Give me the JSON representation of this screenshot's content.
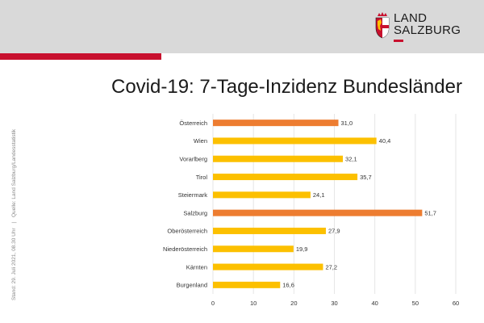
{
  "logo": {
    "line1": "LAND",
    "line2": "SALZBURG"
  },
  "colors": {
    "header_bg": "#d9d9d9",
    "brand_red": "#c8102e",
    "bar_default": "#fcc000",
    "bar_highlight": "#ed7d31",
    "gridline": "#e6e6e6"
  },
  "side_note": {
    "stand": "Stand: 29. Juli 2021, 08.30 Uhr",
    "separator": "|",
    "quelle": "Quelle: Land Salzburg/Landesstatistik"
  },
  "chart_data": {
    "type": "bar",
    "orientation": "horizontal",
    "title": "Covid-19: 7-Tage-Inzidenz Bundesländer",
    "categories": [
      "Österreich",
      "Wien",
      "Vorarlberg",
      "Tirol",
      "Steiermark",
      "Salzburg",
      "Oberösterreich",
      "Niederösterreich",
      "Kärnten",
      "Burgenland"
    ],
    "values": [
      31.0,
      40.4,
      32.1,
      35.7,
      24.1,
      51.7,
      27.9,
      19.9,
      27.2,
      16.6
    ],
    "value_labels": [
      "31,0",
      "40,4",
      "32,1",
      "35,7",
      "24,1",
      "51,7",
      "27,9",
      "19,9",
      "27,2",
      "16,6"
    ],
    "highlighted": [
      "Österreich",
      "Salzburg"
    ],
    "xlim": [
      0,
      60
    ],
    "xticks": [
      0,
      10,
      20,
      30,
      40,
      50,
      60
    ],
    "xlabel": "",
    "ylabel": "",
    "grid": true,
    "legend": "none"
  }
}
